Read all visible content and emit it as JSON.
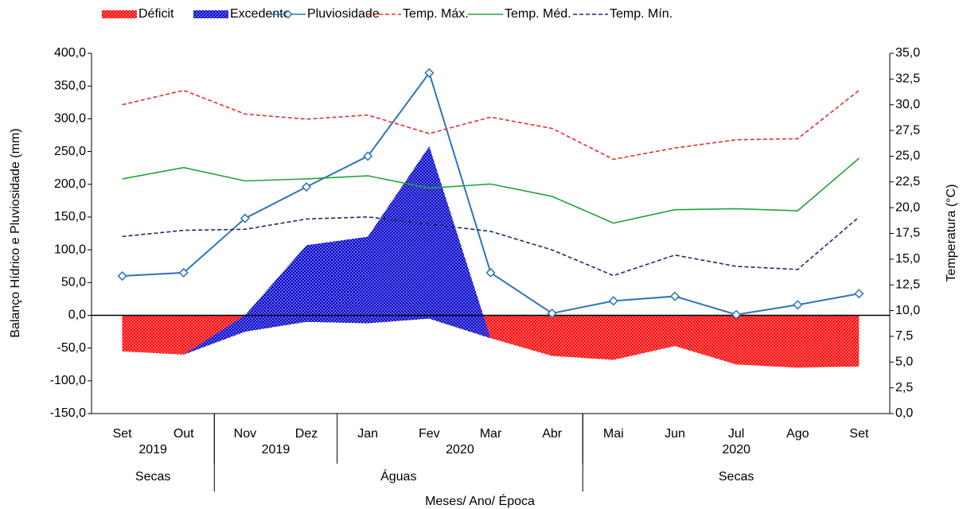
{
  "chart_data": {
    "type": "combo",
    "xlabel": "Meses/ Ano/ Época",
    "ylabel": "Balanço Hídrico e Pluviosidade (mm)",
    "y2label": "Temperatura (°C)",
    "categories": [
      "Set",
      "Out",
      "Nov",
      "Dez",
      "Jan",
      "Fev",
      "Mar",
      "Abr",
      "Mai",
      "Jun",
      "Jul",
      "Ago",
      "Set"
    ],
    "years": [
      {
        "label": "2019",
        "span": [
          0,
          1
        ]
      },
      {
        "label": "2019",
        "span": [
          2,
          3
        ]
      },
      {
        "label": "2020",
        "span": [
          4,
          7
        ]
      },
      {
        "label": "2020",
        "span": [
          8,
          12
        ]
      }
    ],
    "seasons": [
      {
        "label": "Secas",
        "span": [
          0,
          1
        ]
      },
      {
        "label": "Águas",
        "span": [
          2,
          7
        ]
      },
      {
        "label": "Secas",
        "span": [
          8,
          12
        ]
      }
    ],
    "series": [
      {
        "name": "Déficit",
        "type": "area",
        "color": "#ff0000",
        "values": [
          -55,
          -60,
          -25,
          -10,
          -12,
          -5,
          -35,
          -62,
          -68,
          -47,
          -75,
          -80,
          -78
        ]
      },
      {
        "name": "Excedente",
        "type": "area",
        "color": "#0000cc",
        "values": [
          0,
          0,
          0,
          107,
          120,
          258,
          0,
          0,
          0,
          0,
          0,
          0,
          0
        ]
      },
      {
        "name": "Pluviosidade",
        "type": "line",
        "marker": "diamond",
        "color": "#2e75b6",
        "values": [
          60,
          65,
          148,
          196,
          243,
          370,
          65,
          3,
          22,
          29,
          1,
          16,
          33
        ]
      },
      {
        "name": "Temp. Máx.",
        "type": "line",
        "dash": true,
        "axis": "y2",
        "color": "#e03030",
        "values": [
          30.0,
          31.4,
          29.1,
          28.6,
          29.0,
          27.2,
          28.8,
          27.7,
          24.7,
          25.8,
          26.6,
          26.7,
          31.4
        ]
      },
      {
        "name": "Temp. Méd.",
        "type": "line",
        "axis": "y2",
        "color": "#22a33a",
        "values": [
          22.8,
          23.9,
          22.6,
          22.8,
          23.1,
          21.9,
          22.3,
          21.1,
          18.5,
          19.8,
          19.9,
          19.7,
          24.8
        ]
      },
      {
        "name": "Temp. Mín.",
        "type": "line",
        "dash": true,
        "axis": "y2",
        "color": "#1f2a6b",
        "values": [
          17.2,
          17.8,
          17.9,
          18.9,
          19.1,
          18.4,
          17.7,
          15.9,
          13.4,
          15.4,
          14.3,
          14.0,
          19.1
        ]
      }
    ],
    "ylim": [
      -150,
      400
    ],
    "yticks": [
      {
        "value": -150,
        "label": "-150,0"
      },
      {
        "value": -100,
        "label": "-100,0"
      },
      {
        "value": -50,
        "label": "-50,0"
      },
      {
        "value": 0,
        "label": "0,0"
      },
      {
        "value": 50,
        "label": "50,0"
      },
      {
        "value": 100,
        "label": "100,0"
      },
      {
        "value": 150,
        "label": "150,0"
      },
      {
        "value": 200,
        "label": "200,0"
      },
      {
        "value": 250,
        "label": "250,0"
      },
      {
        "value": 300,
        "label": "300,0"
      },
      {
        "value": 350,
        "label": "350,0"
      },
      {
        "value": 400,
        "label": "400,0"
      }
    ],
    "y2lim": [
      0,
      35
    ],
    "y2ticks": [
      {
        "value": 0,
        "label": "0,0"
      },
      {
        "value": 2.5,
        "label": "2,5"
      },
      {
        "value": 5,
        "label": "5,0"
      },
      {
        "value": 7.5,
        "label": "7,5"
      },
      {
        "value": 10,
        "label": "10,0"
      },
      {
        "value": 12.5,
        "label": "12,5"
      },
      {
        "value": 15,
        "label": "15,0"
      },
      {
        "value": 17.5,
        "label": "17,5"
      },
      {
        "value": 20,
        "label": "20,0"
      },
      {
        "value": 22.5,
        "label": "22,5"
      },
      {
        "value": 25,
        "label": "25,0"
      },
      {
        "value": 27.5,
        "label": "27,5"
      },
      {
        "value": 30,
        "label": "30,0"
      },
      {
        "value": 32.5,
        "label": "32,5"
      },
      {
        "value": 35,
        "label": "35,0"
      }
    ],
    "legend": "top"
  }
}
